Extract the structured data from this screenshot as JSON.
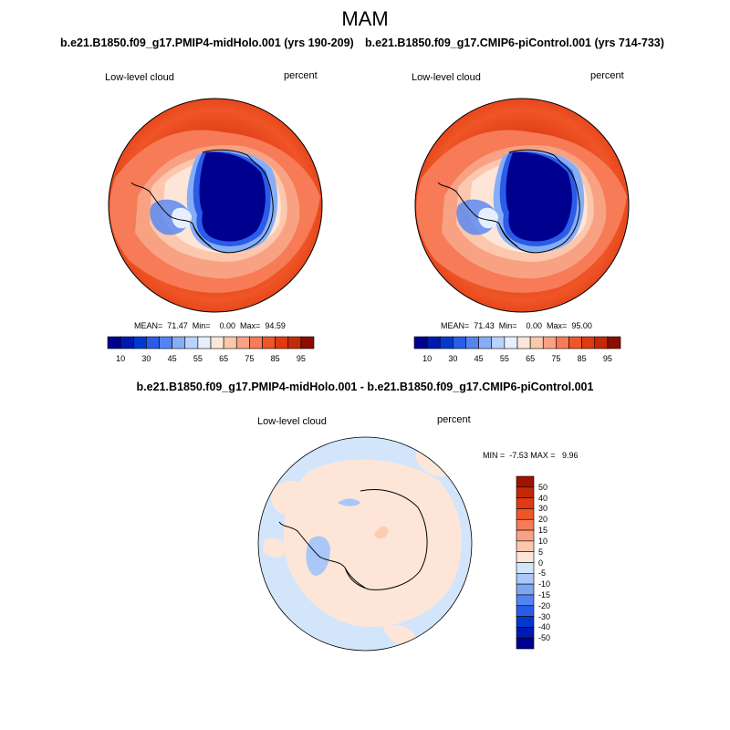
{
  "figure": {
    "season": "MAM",
    "case_title": "b.e21.B1850.f09_g17.PMIP4-midHolo.001 (yrs 190-209)",
    "control_title": "b.e21.B1850.f09_g17.CMIP6-piControl.001 (yrs 714-733)",
    "diff_title": "b.e21.B1850.f09_g17.PMIP4-midHolo.001 - b.e21.B1850.f09_g17.CMIP6-piControl.001"
  },
  "panels": [
    {
      "variable": "Low-level cloud",
      "units": "percent",
      "stats": "MEAN=  71.47  Min=    0.00  Max=  94.59"
    },
    {
      "variable": "Low-level cloud",
      "units": "percent",
      "stats": "MEAN=  71.43  Min=    0.00  Max=  95.00"
    }
  ],
  "diff_panel": {
    "variable": "Low-level cloud",
    "units": "percent",
    "stats": "MIN =  -7.53 MAX =   9.96"
  },
  "colorbar_abs": {
    "tick_labels": [
      "10",
      "30",
      "45",
      "55",
      "65",
      "75",
      "85",
      "95"
    ],
    "colors": [
      "#00008f",
      "#0019b0",
      "#0038d0",
      "#2a5ce8",
      "#5384f2",
      "#86aef6",
      "#b9d2fa",
      "#e5effd",
      "#fde6d8",
      "#fbc7ad",
      "#f8a283",
      "#f67b56",
      "#ef5527",
      "#df3a12",
      "#c42a08",
      "#8b0d00"
    ]
  },
  "colorbar_diff": {
    "tick_labels": [
      "50",
      "40",
      "30",
      "20",
      "15",
      "10",
      "5",
      "0",
      "-5",
      "-10",
      "-15",
      "-20",
      "-30",
      "-40",
      "-50"
    ],
    "colors": [
      "#a11200",
      "#c22708",
      "#df3a12",
      "#ef5527",
      "#f67b56",
      "#f8a283",
      "#fbc7ad",
      "#fde6d8",
      "#d3e5fb",
      "#a9c7f8",
      "#7ea6f2",
      "#5384f2",
      "#2a5ce8",
      "#0038d0",
      "#0019b0",
      "#00008f"
    ]
  }
}
